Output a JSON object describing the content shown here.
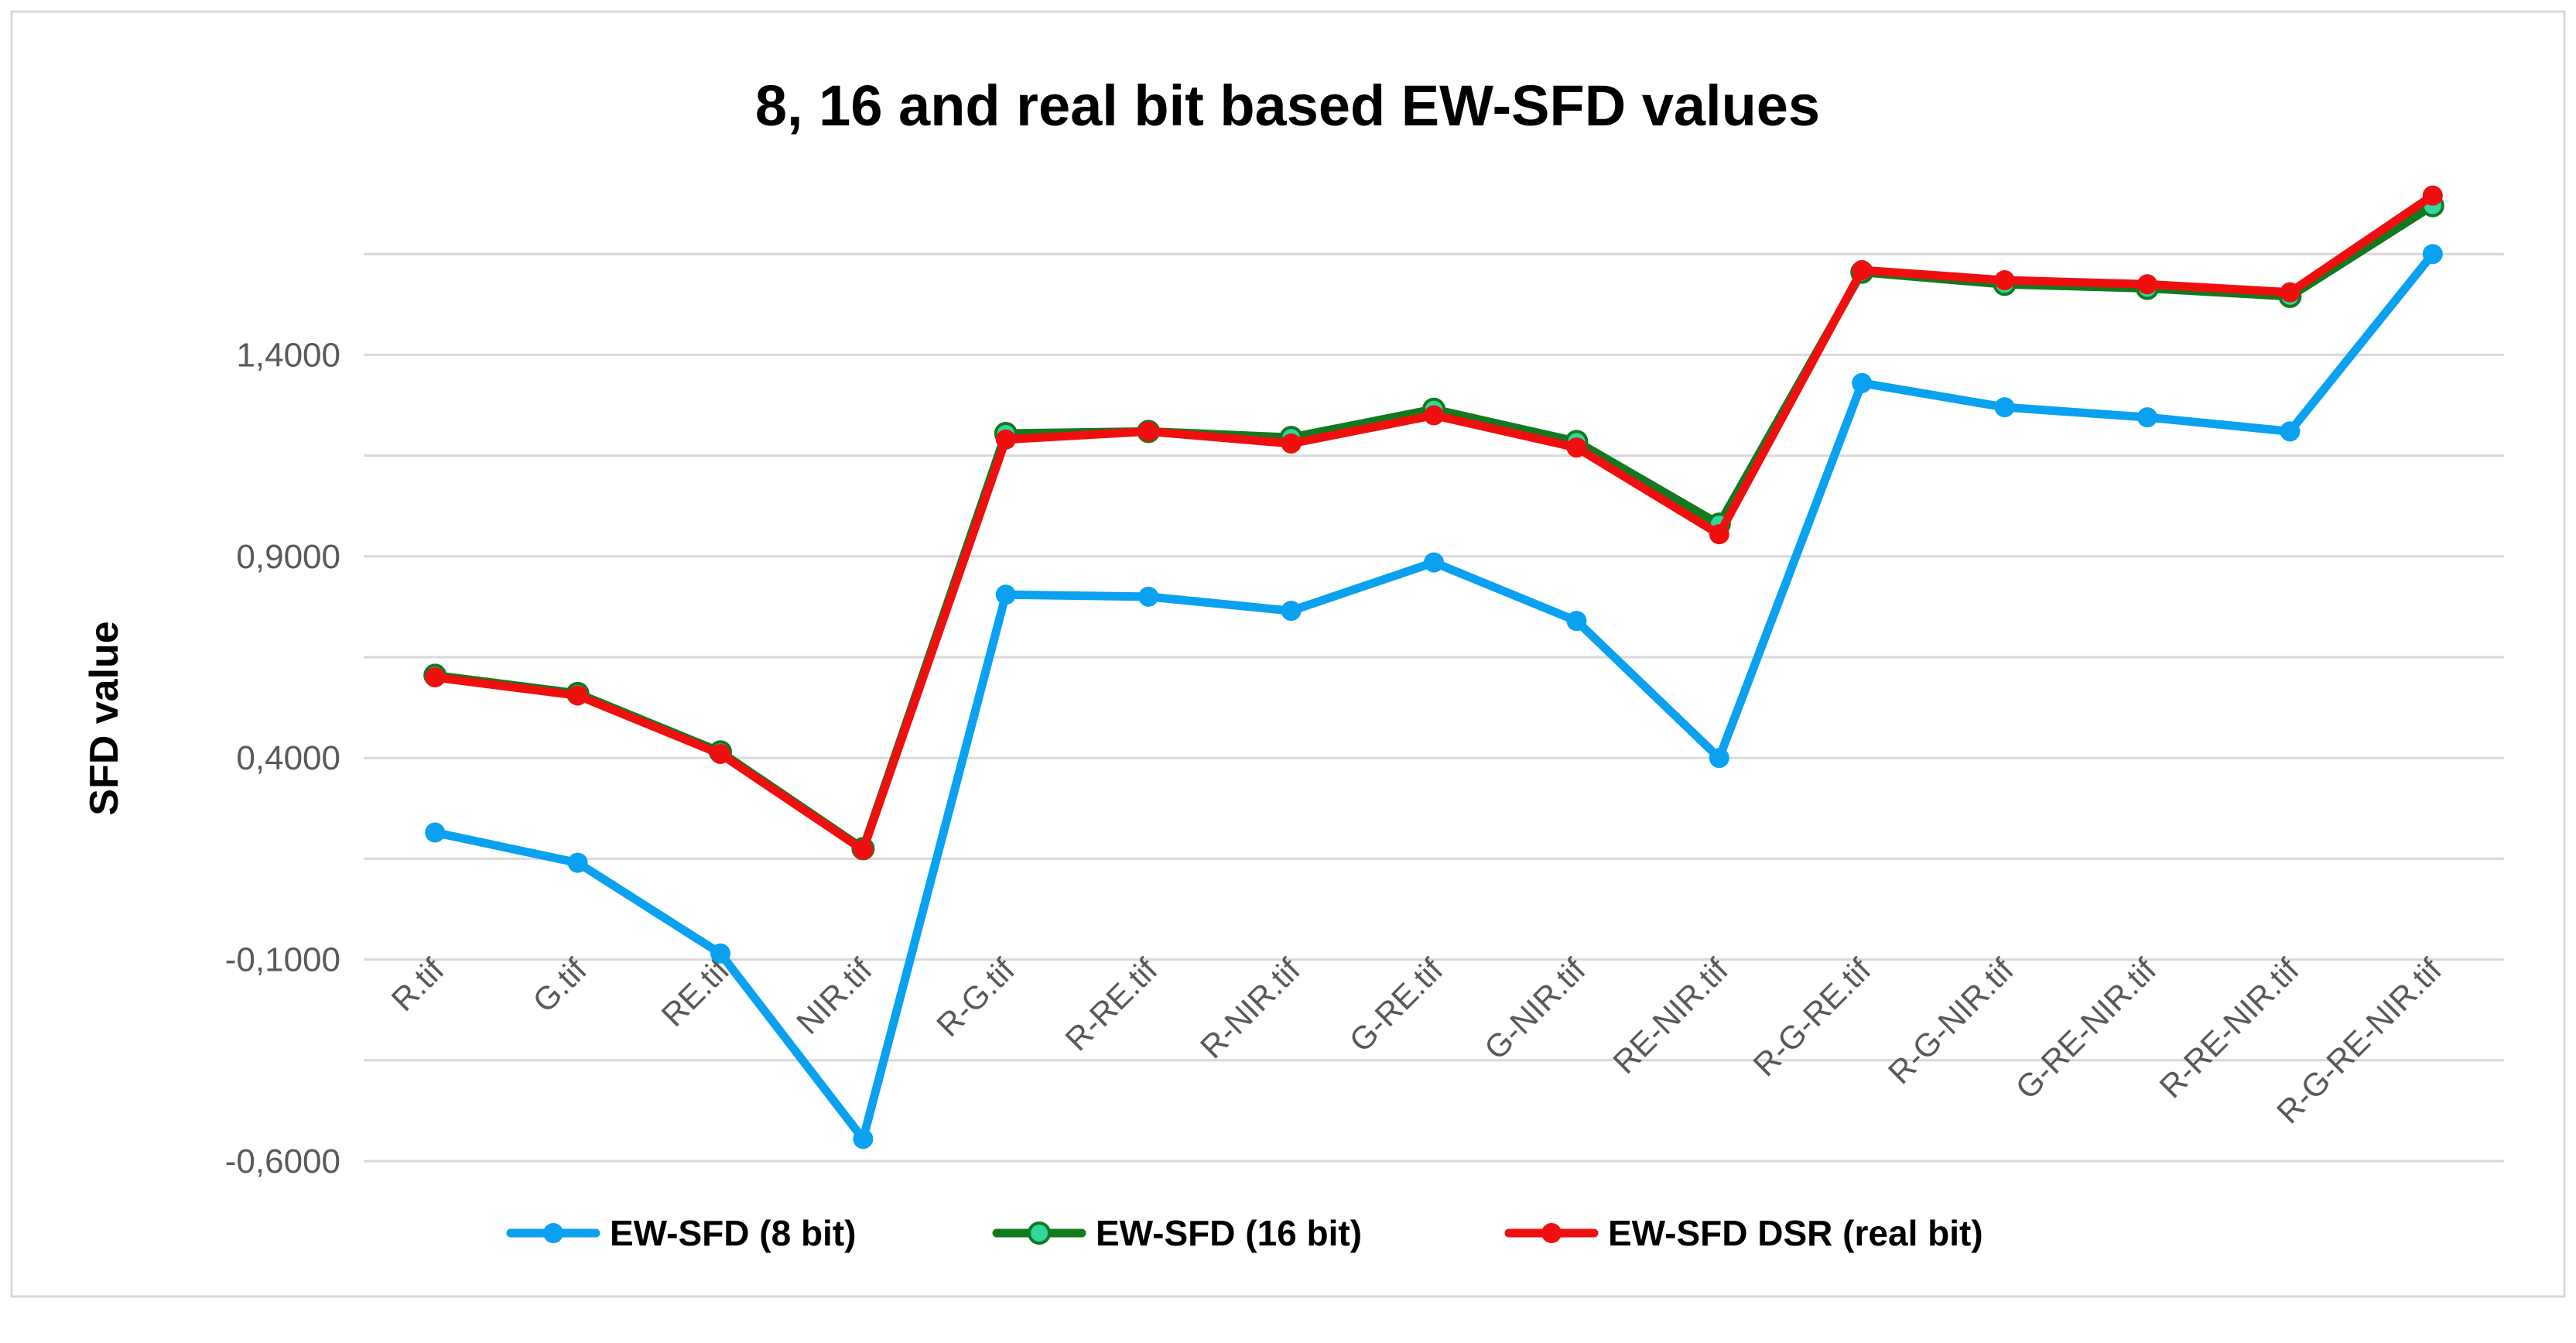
{
  "chart_data": {
    "type": "line",
    "title": "8, 16 and real bit based EW-SFD values",
    "xlabel": "",
    "ylabel": "SFD value",
    "ylim": [
      -0.6,
      1.9
    ],
    "yticks": [
      "-0,6000",
      "-0,1000",
      "0,4000",
      "0,9000",
      "1,4000"
    ],
    "ytick_values": [
      -0.6,
      -0.1,
      0.4,
      0.9,
      1.4
    ],
    "grid": true,
    "legend_position": "bottom",
    "categories": [
      "R.tif",
      "G.tif",
      "RE.tif",
      "NIR.tif",
      "R-G.tif",
      "R-RE.tif",
      "R-NIR.tif",
      "G-RE.tif",
      "G-NIR.tif",
      "RE-NIR.tif",
      "R-G-RE.tif",
      "R-G-NIR.tif",
      "G-RE-NIR.tif",
      "R-RE-NIR.tif",
      "R-G-RE-NIR.tif"
    ],
    "series": [
      {
        "name": "EW-SFD (8 bit)",
        "color": "#0aa2f0",
        "values": [
          0.215,
          0.14,
          -0.085,
          -0.545,
          0.805,
          0.8,
          0.765,
          0.885,
          0.74,
          0.4,
          1.33,
          1.27,
          1.245,
          1.21,
          1.65
        ]
      },
      {
        "name": "EW-SFD (16 bit)",
        "color": "#117a1e",
        "marker_color": "#2fd89c",
        "values": [
          0.605,
          0.56,
          0.415,
          0.175,
          1.205,
          1.21,
          1.195,
          1.265,
          1.185,
          0.98,
          1.605,
          1.575,
          1.565,
          1.545,
          1.77
        ]
      },
      {
        "name": "EW-SFD DSR (real bit)",
        "color": "#f00f0f",
        "values": [
          0.6,
          0.555,
          0.41,
          0.172,
          1.19,
          1.21,
          1.18,
          1.25,
          1.17,
          0.955,
          1.61,
          1.585,
          1.575,
          1.555,
          1.795
        ]
      }
    ]
  }
}
